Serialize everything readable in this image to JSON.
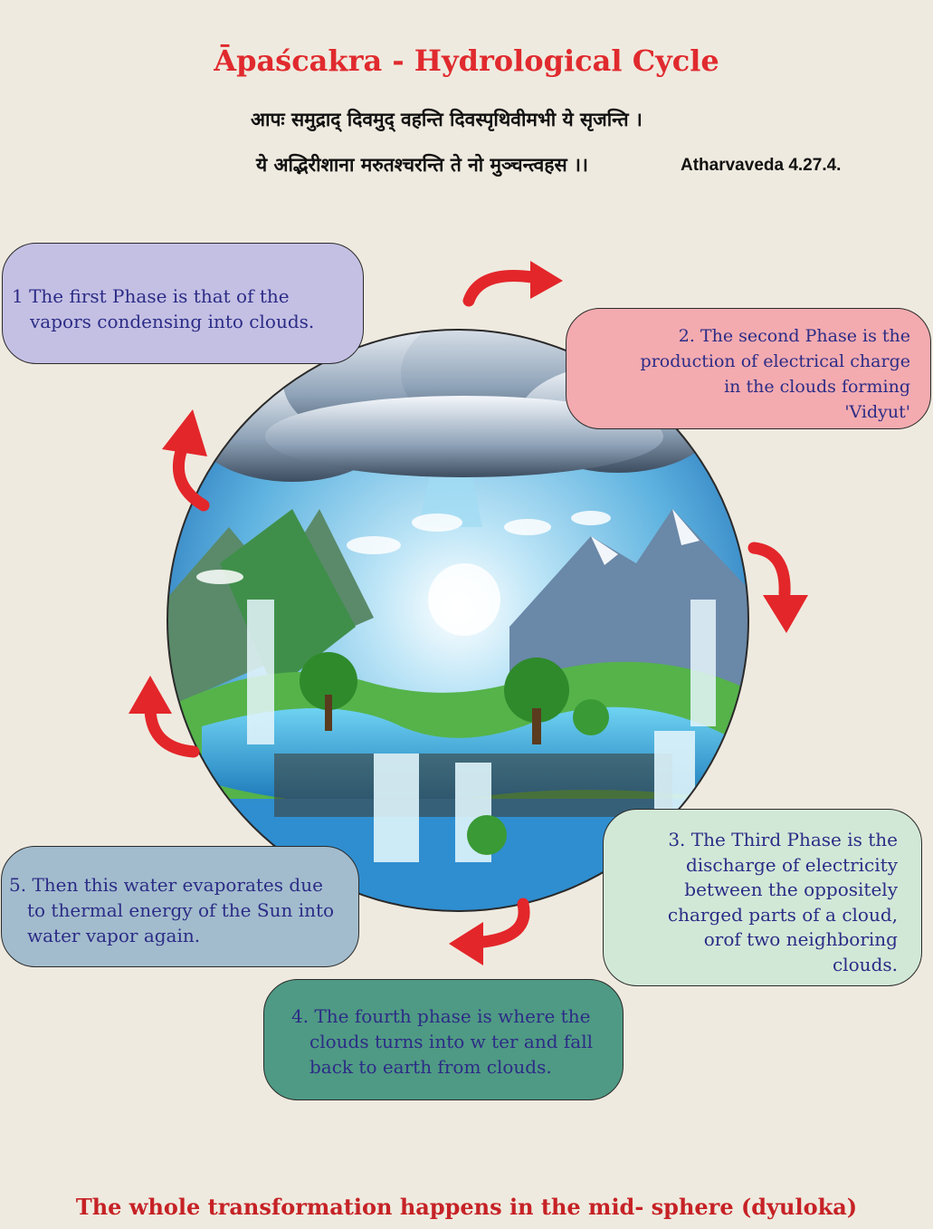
{
  "title": "Āpaścakra - Hydrological Cycle",
  "verse": {
    "line1": "आपः समुद्राद् दिवमुद् वहन्ति दिवस्पृथिवीमभी ये सृजन्ति ।",
    "line2": "ये अद्भिरीशाना मरुतश्चरन्ति ते नो मुञ्चन्त्वहस ।।",
    "reference": "Atharvaveda 4.27.4."
  },
  "phases": [
    {
      "lines": [
        "1 The first Phase is that of the",
        "vapors condensing into clouds."
      ]
    },
    {
      "lines": [
        "2. The second Phase is the",
        "production of electrical charge",
        "in the clouds forming",
        "'Vidyut'"
      ]
    },
    {
      "lines": [
        "3. The Third Phase is the",
        "discharge of electricity",
        "between the oppositely",
        "charged parts of a cloud,",
        "orof two neighboring",
        "clouds."
      ]
    },
    {
      "lines": [
        "4. The fourth phase is where the",
        "clouds turns into w  ter and fall",
        "back to earth from clouds."
      ]
    },
    {
      "lines": [
        "5. Then this water evaporates due",
        "to thermal energy of the Sun into",
        "water vapor again."
      ]
    }
  ],
  "footer": "The whole transformation happens in the mid- sphere (dyuloka)",
  "colors": {
    "title": "#e02a2e",
    "arrow": "#e3262a",
    "box1": "#c4c0e4",
    "box2": "#f3abb0",
    "box3": "#d2e8d7",
    "box4": "#4f9a84",
    "box5": "#a2bccd"
  }
}
